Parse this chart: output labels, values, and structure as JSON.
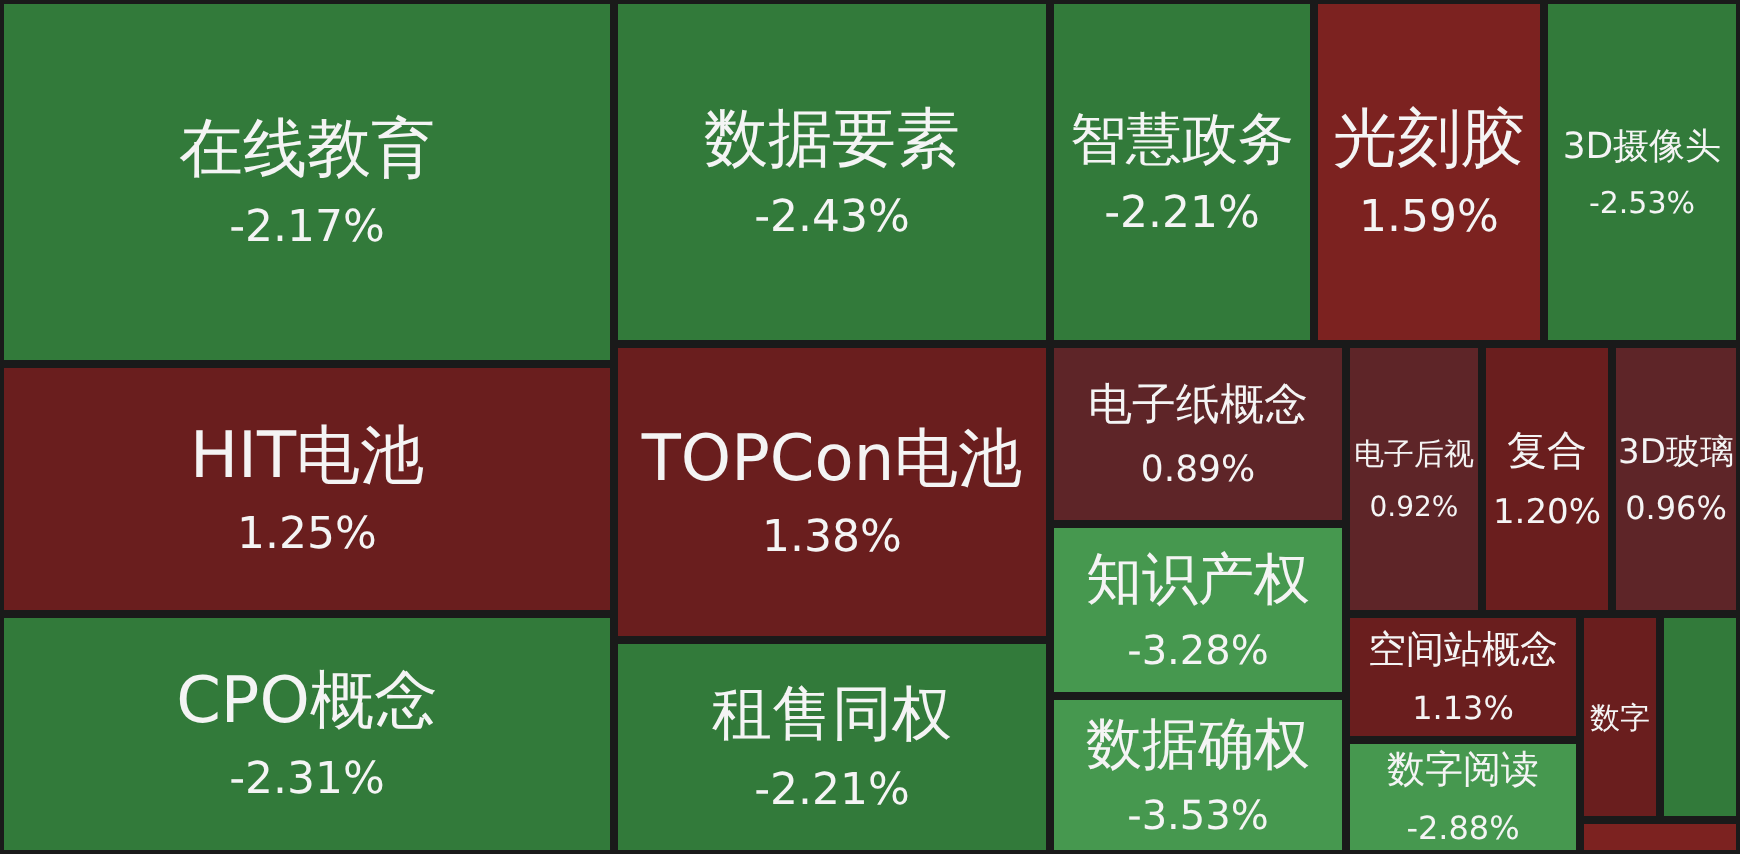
{
  "chart_data": {
    "type": "other",
    "categories": [
      "在线教育",
      "数据要素",
      "智慧政务",
      "光刻胶",
      "3D摄像头",
      "HIT电池",
      "TOPCon电池",
      "电子纸概念",
      "电子后视",
      "复合",
      "3D玻璃",
      "知识产权",
      "CPO概念",
      "租售同权",
      "数据确权",
      "空间站概念",
      "数字阅读",
      "数字",
      null,
      null
    ],
    "values": [
      -2.17,
      -2.43,
      -2.21,
      1.59,
      -2.53,
      1.25,
      1.38,
      0.89,
      0.92,
      1.2,
      0.96,
      -3.28,
      -2.31,
      -2.21,
      -3.53,
      1.13,
      -2.88,
      null,
      null,
      null
    ],
    "value_labels": [
      "-2.17%",
      "-2.43%",
      "-2.21%",
      "1.59%",
      "-2.53%",
      "1.25%",
      "1.38%",
      "0.89%",
      "0.92%",
      "1.20%",
      "0.96%",
      "-3.28%",
      "-2.31%",
      "-2.21%",
      "-3.53%",
      "1.13%",
      "-2.88%",
      null,
      null,
      null
    ],
    "colors": [
      "#327a3a",
      "#327a3a",
      "#327a3a",
      "#7c2220",
      "#327a3a",
      "#6a1e1e",
      "#6a1e1e",
      "#5e2528",
      "#5e2528",
      "#6a1e1e",
      "#5e2528",
      "#46984f",
      "#327a3a",
      "#327a3a",
      "#46984f",
      "#6a1e1e",
      "#46984f",
      "#6a1e1e",
      "#327a3a",
      "#7c2220"
    ]
  }
}
